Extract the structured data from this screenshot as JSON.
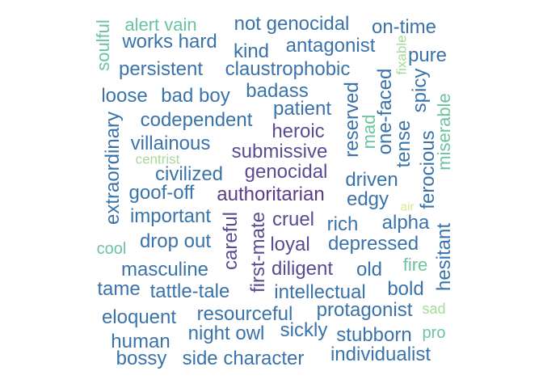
{
  "palette": {
    "dark_purple": "#5a3d8a",
    "purple": "#5b4a94",
    "steel_blue": "#3a73aa",
    "blue": "#3385b8",
    "teal_blue": "#3f93b8",
    "teal": "#4ea6a6",
    "green": "#6cc3a0",
    "light_green": "#a6d99a",
    "pale_yellow": "#d8ea8c"
  },
  "words": [
    {
      "text": "alert vain",
      "color": "#6cc3a0"
    },
    {
      "text": "not genocidal",
      "color": "#3a73aa"
    },
    {
      "text": "on-time",
      "color": "#3a73aa"
    },
    {
      "text": "works hard",
      "color": "#3a73aa"
    },
    {
      "text": "kind",
      "color": "#3a73aa"
    },
    {
      "text": "antagonist",
      "color": "#3a73aa"
    },
    {
      "text": "soulful",
      "color": "#6cc3a0"
    },
    {
      "text": "fixable",
      "color": "#a6d99a"
    },
    {
      "text": "pure",
      "color": "#3a73aa"
    },
    {
      "text": "persistent",
      "color": "#3a73aa"
    },
    {
      "text": "claustrophobic",
      "color": "#3a73aa"
    },
    {
      "text": "one-faced",
      "color": "#3a73aa"
    },
    {
      "text": "spicy",
      "color": "#3a73aa"
    },
    {
      "text": "loose",
      "color": "#3a73aa"
    },
    {
      "text": "bad boy",
      "color": "#3a73aa"
    },
    {
      "text": "badass",
      "color": "#3a73aa"
    },
    {
      "text": "reserved",
      "color": "#3a73aa"
    },
    {
      "text": "mad",
      "color": "#6cc3a0"
    },
    {
      "text": "miserable",
      "color": "#6cc3a0"
    },
    {
      "text": "patient",
      "color": "#3a73aa"
    },
    {
      "text": "codependent",
      "color": "#3a73aa"
    },
    {
      "text": "extraordinary",
      "color": "#3a73aa"
    },
    {
      "text": "tense",
      "color": "#3a73aa"
    },
    {
      "text": "heroic",
      "color": "#5b4a94"
    },
    {
      "text": "villainous",
      "color": "#3a73aa"
    },
    {
      "text": "submissive",
      "color": "#5b4a94"
    },
    {
      "text": "ferocious",
      "color": "#3a73aa"
    },
    {
      "text": "centrist",
      "color": "#a6d99a"
    },
    {
      "text": "genocidal",
      "color": "#5b4a94"
    },
    {
      "text": "civilized",
      "color": "#3a73aa"
    },
    {
      "text": "driven",
      "color": "#3a73aa"
    },
    {
      "text": "goof-off",
      "color": "#3a73aa"
    },
    {
      "text": "authoritarian",
      "color": "#5a3d8a"
    },
    {
      "text": "edgy",
      "color": "#3a73aa"
    },
    {
      "text": "air",
      "color": "#d8ea8c"
    },
    {
      "text": "careful",
      "color": "#5b4a94"
    },
    {
      "text": "important",
      "color": "#3a73aa"
    },
    {
      "text": "first-mate",
      "color": "#5b4a94"
    },
    {
      "text": "cruel",
      "color": "#5b4a94"
    },
    {
      "text": "rich",
      "color": "#3a73aa"
    },
    {
      "text": "alpha",
      "color": "#3a73aa"
    },
    {
      "text": "drop out",
      "color": "#3a73aa"
    },
    {
      "text": "loyal",
      "color": "#5b4a94"
    },
    {
      "text": "depressed",
      "color": "#3a73aa"
    },
    {
      "text": "hesitant",
      "color": "#3a73aa"
    },
    {
      "text": "cool",
      "color": "#6cc3a0"
    },
    {
      "text": "masculine",
      "color": "#3a73aa"
    },
    {
      "text": "diligent",
      "color": "#5b4a94"
    },
    {
      "text": "old",
      "color": "#3a73aa"
    },
    {
      "text": "fire",
      "color": "#6cc3a0"
    },
    {
      "text": "tame",
      "color": "#3a73aa"
    },
    {
      "text": "tattle-tale",
      "color": "#3a73aa"
    },
    {
      "text": "intellectual",
      "color": "#3a73aa"
    },
    {
      "text": "bold",
      "color": "#3a73aa"
    },
    {
      "text": "eloquent",
      "color": "#3a73aa"
    },
    {
      "text": "resourceful",
      "color": "#3a73aa"
    },
    {
      "text": "protagonist",
      "color": "#3a73aa"
    },
    {
      "text": "sad",
      "color": "#a6d99a"
    },
    {
      "text": "human",
      "color": "#3a73aa"
    },
    {
      "text": "night owl",
      "color": "#3a73aa"
    },
    {
      "text": "sickly",
      "color": "#3a73aa"
    },
    {
      "text": "stubborn",
      "color": "#3a73aa"
    },
    {
      "text": "pro",
      "color": "#6cc3a0"
    },
    {
      "text": "bossy",
      "color": "#3a73aa"
    },
    {
      "text": "side character",
      "color": "#3a73aa"
    },
    {
      "text": "individualist",
      "color": "#3a73aa"
    }
  ]
}
